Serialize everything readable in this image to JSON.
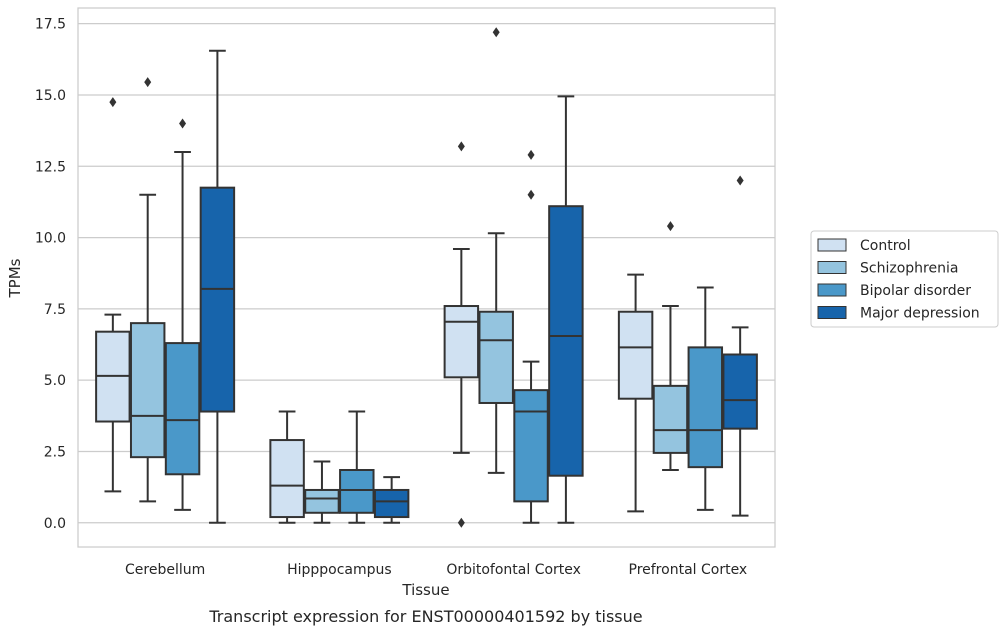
{
  "caption": "Transcript expression for ENST00000401592 by tissue",
  "chart_data": {
    "type": "boxplot",
    "xlabel": "Tissue",
    "ylabel": "TPMs",
    "ylim": [
      -0.85,
      18.05
    ],
    "yticks": [
      "0.0",
      "2.5",
      "5.0",
      "7.5",
      "10.0",
      "12.5",
      "15.0",
      "17.5"
    ],
    "grid": true,
    "legend_position": "right",
    "categories": [
      "Cerebellum",
      "Hipppocampus",
      "Orbitofontal Cortex",
      "Prefrontal Cortex"
    ],
    "series": [
      {
        "name": "Control",
        "color": "#d0e1f2",
        "boxes": [
          {
            "whislo": 1.1,
            "q1": 3.55,
            "median": 5.15,
            "q3": 6.7,
            "whishi": 7.3,
            "fliers": [
              14.75
            ]
          },
          {
            "whislo": 0.0,
            "q1": 0.2,
            "median": 1.3,
            "q3": 2.9,
            "whishi": 3.9,
            "fliers": []
          },
          {
            "whislo": 2.45,
            "q1": 5.1,
            "median": 7.05,
            "q3": 7.6,
            "whishi": 9.6,
            "fliers": [
              13.2,
              0.0
            ]
          },
          {
            "whislo": 0.4,
            "q1": 4.35,
            "median": 6.15,
            "q3": 7.4,
            "whishi": 8.7,
            "fliers": []
          }
        ]
      },
      {
        "name": "Schizophrenia",
        "color": "#94c4df",
        "boxes": [
          {
            "whislo": 0.75,
            "q1": 2.3,
            "median": 3.75,
            "q3": 7.0,
            "whishi": 11.5,
            "fliers": [
              15.45
            ]
          },
          {
            "whislo": 0.0,
            "q1": 0.35,
            "median": 0.85,
            "q3": 1.15,
            "whishi": 2.15,
            "fliers": []
          },
          {
            "whislo": 1.75,
            "q1": 4.2,
            "median": 6.4,
            "q3": 7.4,
            "whishi": 10.15,
            "fliers": [
              17.2
            ]
          },
          {
            "whislo": 1.85,
            "q1": 2.45,
            "median": 3.25,
            "q3": 4.8,
            "whishi": 7.6,
            "fliers": [
              10.4
            ]
          }
        ]
      },
      {
        "name": "Bipolar disorder",
        "color": "#4a98c9",
        "boxes": [
          {
            "whislo": 0.45,
            "q1": 1.7,
            "median": 3.6,
            "q3": 6.3,
            "whishi": 13.0,
            "fliers": [
              14.0
            ]
          },
          {
            "whislo": 0.0,
            "q1": 0.35,
            "median": 1.15,
            "q3": 1.85,
            "whishi": 3.9,
            "fliers": []
          },
          {
            "whislo": 0.0,
            "q1": 0.75,
            "median": 3.9,
            "q3": 4.65,
            "whishi": 5.65,
            "fliers": [
              12.9,
              11.5
            ]
          },
          {
            "whislo": 0.45,
            "q1": 1.95,
            "median": 3.25,
            "q3": 6.15,
            "whishi": 8.25,
            "fliers": []
          }
        ]
      },
      {
        "name": "Major depression",
        "color": "#1764ab",
        "boxes": [
          {
            "whislo": 0.0,
            "q1": 3.9,
            "median": 8.2,
            "q3": 11.75,
            "whishi": 16.55,
            "fliers": []
          },
          {
            "whislo": 0.0,
            "q1": 0.2,
            "median": 0.75,
            "q3": 1.15,
            "whishi": 1.6,
            "fliers": []
          },
          {
            "whislo": 0.0,
            "q1": 1.65,
            "median": 6.55,
            "q3": 11.1,
            "whishi": 14.95,
            "fliers": []
          },
          {
            "whislo": 0.25,
            "q1": 3.3,
            "median": 4.3,
            "q3": 5.9,
            "whishi": 6.85,
            "fliers": [
              12.0
            ]
          }
        ]
      }
    ]
  }
}
